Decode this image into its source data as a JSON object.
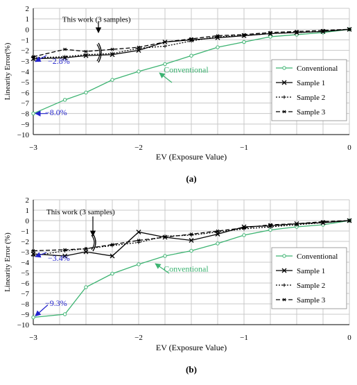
{
  "chart_data": [
    {
      "type": "line",
      "panel_label": "(a)",
      "xlabel": "EV (Exposure Value)",
      "ylabel": "Linearity Error(%)",
      "xlim": [
        -3,
        0
      ],
      "ylim": [
        -10,
        2
      ],
      "x_ticks": [
        -3,
        -2,
        -1,
        0
      ],
      "y_ticks": [
        2,
        1,
        0,
        -1,
        -2,
        -3,
        -4,
        -5,
        -6,
        -7,
        -8,
        -9,
        -10
      ],
      "grid": true,
      "legend_position": "right",
      "series": [
        {
          "name": "Conventional",
          "color": "#3cb371",
          "style": "solid",
          "marker": "circle",
          "x": [
            -3,
            -2.7,
            -2.5,
            -2.25,
            -2,
            -1.75,
            -1.5,
            -1.25,
            -1,
            -0.75,
            -0.5,
            -0.25,
            0
          ],
          "y": [
            -8.0,
            -6.7,
            -6.0,
            -4.8,
            -4.0,
            -3.3,
            -2.5,
            -1.7,
            -1.2,
            -0.7,
            -0.5,
            -0.3,
            0
          ]
        },
        {
          "name": "Sample 1",
          "color": "#000000",
          "style": "solid",
          "marker": "x",
          "x": [
            -3,
            -2.7,
            -2.5,
            -2.25,
            -2,
            -1.75,
            -1.5,
            -1.25,
            -1,
            -0.75,
            -0.5,
            -0.25,
            0
          ],
          "y": [
            -2.8,
            -2.7,
            -2.5,
            -2.4,
            -2.0,
            -1.2,
            -1.0,
            -0.8,
            -0.6,
            -0.4,
            -0.3,
            -0.2,
            0
          ]
        },
        {
          "name": "Sample 2",
          "color": "#000000",
          "style": "dotted",
          "marker": "plus",
          "x": [
            -3,
            -2.7,
            -2.5,
            -2.25,
            -2,
            -1.75,
            -1.5,
            -1.25,
            -1,
            -0.75,
            -0.5,
            -0.25,
            0
          ],
          "y": [
            -2.7,
            -2.6,
            -2.4,
            -2.3,
            -1.8,
            -1.6,
            -1.1,
            -0.7,
            -0.6,
            -0.4,
            -0.3,
            -0.2,
            0
          ]
        },
        {
          "name": "Sample 3",
          "color": "#000000",
          "style": "dashed",
          "marker": "star",
          "x": [
            -3,
            -2.7,
            -2.5,
            -2.25,
            -2,
            -1.75,
            -1.5,
            -1.25,
            -1,
            -0.75,
            -0.5,
            -0.25,
            0
          ],
          "y": [
            -2.6,
            -1.9,
            -2.1,
            -1.9,
            -1.7,
            -1.2,
            -0.9,
            -0.6,
            -0.5,
            -0.3,
            -0.2,
            -0.1,
            0
          ]
        }
      ],
      "annotations": [
        {
          "text": "This work (3 samples)",
          "color": "#000000",
          "at": [
            -2.4,
            0.7
          ]
        },
        {
          "text": "−2.8%",
          "color": "#2222cc",
          "at": [
            -2.72,
            -3.4
          ]
        },
        {
          "text": "−8.0%",
          "color": "#2222cc",
          "at": [
            -2.72,
            -8.2
          ]
        },
        {
          "text": "Conventional",
          "color": "#3cb371",
          "at": [
            -1.55,
            -4.1
          ]
        }
      ]
    },
    {
      "type": "line",
      "panel_label": "(b)",
      "xlabel": "EV (Exposure Value)",
      "ylabel": "Linearity Error (%)",
      "xlim": [
        -3,
        0
      ],
      "ylim": [
        -10,
        2
      ],
      "x_ticks": [
        -3,
        -2,
        -1,
        0
      ],
      "y_ticks": [
        2,
        1,
        0,
        -1,
        -2,
        -3,
        -4,
        -5,
        -6,
        -7,
        -8,
        -9,
        -10
      ],
      "grid": true,
      "legend_position": "right",
      "series": [
        {
          "name": "Conventional",
          "color": "#3cb371",
          "style": "solid",
          "marker": "circle",
          "x": [
            -3,
            -2.7,
            -2.5,
            -2.25,
            -2,
            -1.75,
            -1.5,
            -1.25,
            -1,
            -0.75,
            -0.5,
            -0.25,
            0
          ],
          "y": [
            -9.3,
            -9.0,
            -6.4,
            -5.1,
            -4.2,
            -3.4,
            -2.9,
            -2.2,
            -1.4,
            -0.9,
            -0.6,
            -0.4,
            0
          ]
        },
        {
          "name": "Sample 1",
          "color": "#000000",
          "style": "solid",
          "marker": "x",
          "x": [
            -3,
            -2.7,
            -2.5,
            -2.25,
            -2,
            -1.75,
            -1.5,
            -1.25,
            -1,
            -0.75,
            -0.5,
            -0.25,
            0
          ],
          "y": [
            -3.2,
            -3.4,
            -3.0,
            -3.4,
            -1.1,
            -1.6,
            -1.9,
            -1.3,
            -0.6,
            -0.5,
            -0.3,
            -0.2,
            0
          ]
        },
        {
          "name": "Sample 2",
          "color": "#000000",
          "style": "dotted",
          "marker": "plus",
          "x": [
            -3,
            -2.7,
            -2.5,
            -2.25,
            -2,
            -1.75,
            -1.5,
            -1.25,
            -1,
            -0.75,
            -0.5,
            -0.25,
            0
          ],
          "y": [
            -3.4,
            -2.9,
            -2.7,
            -2.4,
            -2.1,
            -1.5,
            -1.4,
            -1.1,
            -0.8,
            -0.6,
            -0.4,
            -0.2,
            0
          ]
        },
        {
          "name": "Sample 3",
          "color": "#000000",
          "style": "dashed",
          "marker": "star",
          "x": [
            -3,
            -2.7,
            -2.5,
            -2.25,
            -2,
            -1.75,
            -1.5,
            -1.25,
            -1,
            -0.75,
            -0.5,
            -0.25,
            0
          ],
          "y": [
            -2.9,
            -2.8,
            -2.7,
            -2.3,
            -1.9,
            -1.6,
            -1.3,
            -1.0,
            -0.7,
            -0.4,
            -0.3,
            -0.1,
            0
          ]
        }
      ],
      "annotations": [
        {
          "text": "This work (3 samples)",
          "color": "#000000",
          "at": [
            -2.55,
            0.6
          ]
        },
        {
          "text": "−3.4%",
          "color": "#2222cc",
          "at": [
            -2.72,
            -4.1
          ]
        },
        {
          "text": "−9.3%",
          "color": "#2222cc",
          "at": [
            -2.72,
            -8.3
          ]
        },
        {
          "text": "Conventional",
          "color": "#3cb371",
          "at": [
            -1.55,
            -4.9
          ]
        }
      ]
    }
  ]
}
